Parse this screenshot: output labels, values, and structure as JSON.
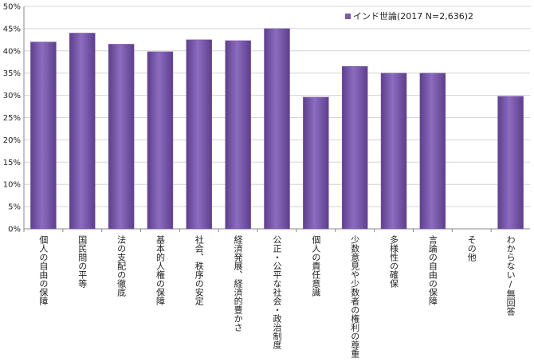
{
  "chart_data": {
    "type": "bar",
    "categories": [
      "個人の自由の保障",
      "国民間の平等",
      "法の支配の徹底",
      "基本的人権の保障",
      "社会、秩序の安定",
      "経済発展、経済的豊かさ",
      "公正・公平な社会・政治制度",
      "個人の責任意識",
      "少数意見や少数者の権利の尊重",
      "多様性の確保",
      "言論の自由の保障",
      "その他",
      "わからない/無回答"
    ],
    "series": [
      {
        "name": "インド世論(2017 N=2,636)2",
        "color": "#7b5aa8",
        "values": [
          42,
          44,
          41.5,
          39.8,
          42.5,
          42.3,
          45,
          29.6,
          36.5,
          35,
          35,
          null,
          29.8
        ]
      }
    ],
    "ylim": [
      0,
      50
    ],
    "yticks": [
      {
        "value": 0,
        "label": "0%"
      },
      {
        "value": 5,
        "label": "5%"
      },
      {
        "value": 10,
        "label": "10%"
      },
      {
        "value": 15,
        "label": "15%"
      },
      {
        "value": 20,
        "label": "20%"
      },
      {
        "value": 25,
        "label": "25%"
      },
      {
        "value": 30,
        "label": "30%"
      },
      {
        "value": 35,
        "label": "35%"
      },
      {
        "value": 40,
        "label": "40%"
      },
      {
        "value": 45,
        "label": "45%"
      },
      {
        "value": 50,
        "label": "50%"
      }
    ],
    "grid": true
  }
}
